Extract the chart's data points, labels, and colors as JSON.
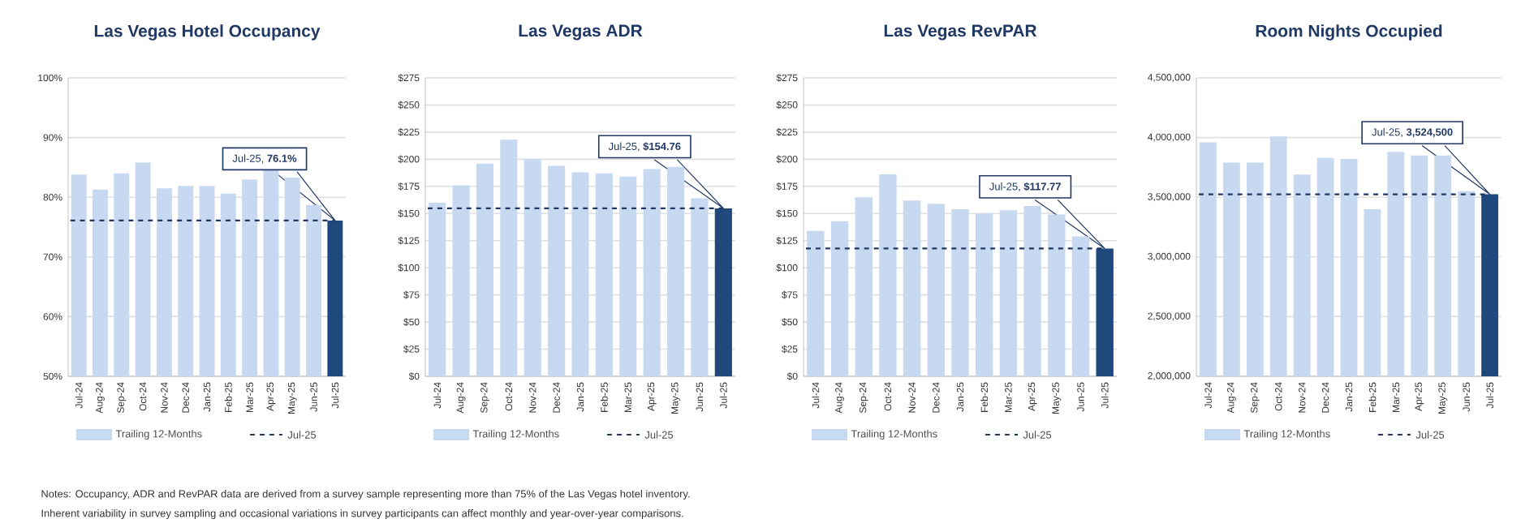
{
  "chart_data": [
    {
      "type": "bar",
      "title": "Las Vegas Hotel Occupancy",
      "categories": [
        "Jul-24",
        "Aug-24",
        "Sep-24",
        "Oct-24",
        "Nov-24",
        "Dec-24",
        "Jan-25",
        "Feb-25",
        "Mar-25",
        "Apr-25",
        "May-25",
        "Jun-25",
        "Jul-25"
      ],
      "series": [
        {
          "name": "Trailing 12-Months",
          "color": "#c6d9f0",
          "colors": [
            "#c6d9f0",
            "#c6d9f0",
            "#c6d9f0",
            "#c6d9f0",
            "#c6d9f0",
            "#c6d9f0",
            "#c6d9f0",
            "#c6d9f0",
            "#c6d9f0",
            "#c6d9f0",
            "#c6d9f0",
            "#c6d9f0",
            "#1f497d"
          ],
          "values": [
            83.8,
            81.3,
            84.0,
            85.8,
            81.5,
            81.9,
            81.9,
            80.6,
            83.0,
            84.7,
            83.3,
            78.7,
            76.1
          ]
        }
      ],
      "ylim": [
        50,
        100
      ],
      "yticks": [
        {
          "value": 50,
          "label": "50%"
        },
        {
          "value": 60,
          "label": "60%"
        },
        {
          "value": 70,
          "label": "70%"
        },
        {
          "value": 80,
          "label": "80%"
        },
        {
          "value": 90,
          "label": "90%"
        },
        {
          "value": 100,
          "label": "100%"
        }
      ],
      "grid": "y",
      "legend": "bottom",
      "ref_lines": [
        {
          "axis": "y",
          "value": 76.1,
          "label": "Jul-25",
          "color": "#1f3864",
          "line_style": "dashed"
        }
      ],
      "annotations": [
        "Jul-25, **76.1%**",
        "Notes: Occupancy, ADR and RevPAR data are derived from a survey sample representing more than 75% of the Las Vegas hotel inventory.",
        "Inherent variability in survey sampling and occasional variations in survey participants can affect monthly and year-over-year comparisons."
      ]
    },
    {
      "type": "bar",
      "title": "Las Vegas ADR",
      "categories": [
        "Jul-24",
        "Aug-24",
        "Sep-24",
        "Oct-24",
        "Nov-24",
        "Dec-24",
        "Jan-25",
        "Feb-25",
        "Mar-25",
        "Apr-25",
        "May-25",
        "Jun-25",
        "Jul-25"
      ],
      "series": [
        {
          "name": "Trailing 12-Months",
          "color": "#c6d9f0",
          "colors": [
            "#c6d9f0",
            "#c6d9f0",
            "#c6d9f0",
            "#c6d9f0",
            "#c6d9f0",
            "#c6d9f0",
            "#c6d9f0",
            "#c6d9f0",
            "#c6d9f0",
            "#c6d9f0",
            "#c6d9f0",
            "#c6d9f0",
            "#1f497d"
          ],
          "values": [
            160,
            176,
            196,
            218,
            200,
            194,
            188,
            187,
            184,
            191,
            193,
            164,
            154.76
          ]
        }
      ],
      "ylim": [
        0,
        275
      ],
      "yticks": [
        {
          "value": 0,
          "label": "$0"
        },
        {
          "value": 25,
          "label": "$25"
        },
        {
          "value": 50,
          "label": "$50"
        },
        {
          "value": 75,
          "label": "$75"
        },
        {
          "value": 100,
          "label": "$100"
        },
        {
          "value": 125,
          "label": "$125"
        },
        {
          "value": 150,
          "label": "$150"
        },
        {
          "value": 175,
          "label": "$175"
        },
        {
          "value": 200,
          "label": "$200"
        },
        {
          "value": 225,
          "label": "$225"
        },
        {
          "value": 250,
          "label": "$250"
        },
        {
          "value": 275,
          "label": "$275"
        }
      ],
      "grid": "y",
      "legend": "bottom",
      "ref_lines": [
        {
          "axis": "y",
          "value": 154.76,
          "label": "Jul-25",
          "color": "#1f3864",
          "line_style": "dashed"
        }
      ],
      "annotations": [
        "Jul-25, **$154.76**"
      ]
    },
    {
      "type": "bar",
      "title": "Las Vegas RevPAR",
      "categories": [
        "Jul-24",
        "Aug-24",
        "Sep-24",
        "Oct-24",
        "Nov-24",
        "Dec-24",
        "Jan-25",
        "Feb-25",
        "Mar-25",
        "Apr-25",
        "May-25",
        "Jun-25",
        "Jul-25"
      ],
      "series": [
        {
          "name": "Trailing 12-Months",
          "color": "#c6d9f0",
          "colors": [
            "#c6d9f0",
            "#c6d9f0",
            "#c6d9f0",
            "#c6d9f0",
            "#c6d9f0",
            "#c6d9f0",
            "#c6d9f0",
            "#c6d9f0",
            "#c6d9f0",
            "#c6d9f0",
            "#c6d9f0",
            "#c6d9f0",
            "#1f497d"
          ],
          "values": [
            134,
            143,
            165,
            186,
            162,
            159,
            154,
            150,
            153,
            157,
            149,
            129,
            117.77
          ]
        }
      ],
      "ylim": [
        0,
        275
      ],
      "yticks": [
        {
          "value": 0,
          "label": "$0"
        },
        {
          "value": 25,
          "label": "$25"
        },
        {
          "value": 50,
          "label": "$50"
        },
        {
          "value": 75,
          "label": "$75"
        },
        {
          "value": 100,
          "label": "$100"
        },
        {
          "value": 125,
          "label": "$125"
        },
        {
          "value": 150,
          "label": "$150"
        },
        {
          "value": 175,
          "label": "$175"
        },
        {
          "value": 200,
          "label": "$200"
        },
        {
          "value": 225,
          "label": "$225"
        },
        {
          "value": 250,
          "label": "$250"
        },
        {
          "value": 275,
          "label": "$275"
        }
      ],
      "grid": "y",
      "legend": "bottom",
      "ref_lines": [
        {
          "axis": "y",
          "value": 117.77,
          "label": "Jul-25",
          "color": "#1f3864",
          "line_style": "dashed"
        }
      ],
      "annotations": [
        "Jul-25, **$117.77**"
      ]
    },
    {
      "type": "bar",
      "title": "Room Nights Occupied",
      "categories": [
        "Jul-24",
        "Aug-24",
        "Sep-24",
        "Oct-24",
        "Nov-24",
        "Dec-24",
        "Jan-25",
        "Feb-25",
        "Mar-25",
        "Apr-25",
        "May-25",
        "Jun-25",
        "Jul-25"
      ],
      "series": [
        {
          "name": "Trailing 12-Months",
          "color": "#c6d9f0",
          "colors": [
            "#c6d9f0",
            "#c6d9f0",
            "#c6d9f0",
            "#c6d9f0",
            "#c6d9f0",
            "#c6d9f0",
            "#c6d9f0",
            "#c6d9f0",
            "#c6d9f0",
            "#c6d9f0",
            "#c6d9f0",
            "#c6d9f0",
            "#1f497d"
          ],
          "values": [
            3960000,
            3790000,
            3790000,
            4010000,
            3690000,
            3830000,
            3820000,
            3400000,
            3880000,
            3850000,
            3850000,
            3550000,
            3524500
          ]
        }
      ],
      "ylim": [
        2000000,
        4500000
      ],
      "yticks": [
        {
          "value": 2000000,
          "label": "2,000,000"
        },
        {
          "value": 2500000,
          "label": "2,500,000"
        },
        {
          "value": 3000000,
          "label": "3,000,000"
        },
        {
          "value": 3500000,
          "label": "3,500,000"
        },
        {
          "value": 4000000,
          "label": "4,000,000"
        },
        {
          "value": 4500000,
          "label": "4,500,000"
        }
      ],
      "grid": "y",
      "legend": "bottom",
      "ref_lines": [
        {
          "axis": "y",
          "value": 3524500,
          "label": "Jul-25",
          "color": "#1f3864",
          "line_style": "dashed"
        }
      ],
      "annotations": [
        "Jul-25, **3,524,500**"
      ]
    }
  ]
}
